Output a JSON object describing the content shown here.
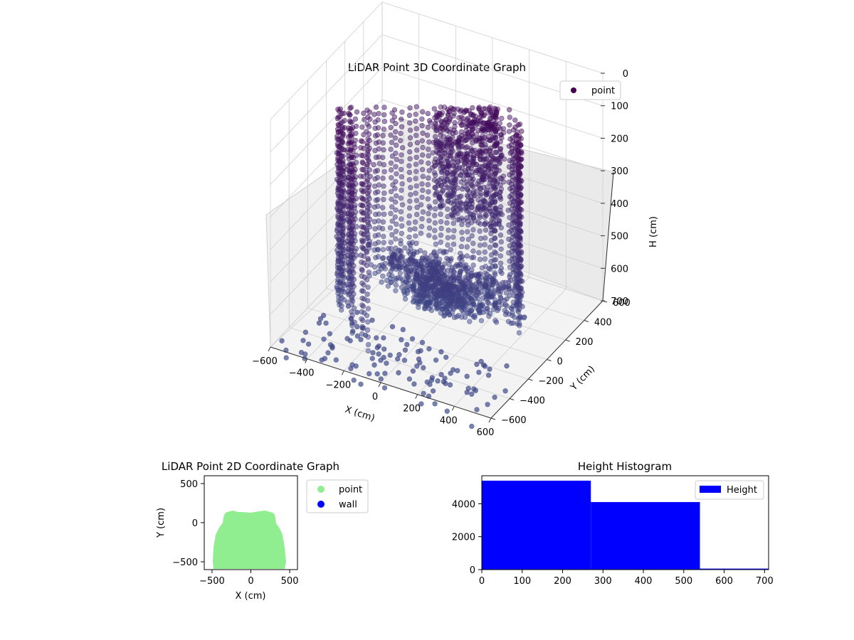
{
  "chart_data": [
    {
      "type": "scatter3d",
      "title": "LiDAR Point 3D Coordinate Graph",
      "xlabel": "X (cm)",
      "ylabel": "Y (cm)",
      "zlabel": "H (cm)",
      "xticks": [
        "−600",
        "−400",
        "−200",
        "0",
        "200",
        "400",
        "600"
      ],
      "yticks": [
        "−600",
        "−400",
        "−200",
        "0",
        "200",
        "400",
        "600"
      ],
      "zticks": [
        "0",
        "100",
        "200",
        "300",
        "400",
        "500",
        "600",
        "700"
      ],
      "xlim": [
        -600,
        600
      ],
      "ylim": [
        -600,
        600
      ],
      "zlim": [
        700,
        0
      ],
      "legend": {
        "position": "top-right",
        "entries": [
          {
            "label": "point",
            "color": "#440154"
          }
        ]
      },
      "point_color_near": "#3e4a89",
      "point_color_far": "#440154",
      "grid": true
    },
    {
      "type": "scatter",
      "title": "LiDAR Point 2D Coordinate Graph",
      "xlabel": "X (cm)",
      "ylabel": "Y (cm)",
      "xticks": [
        "−500",
        "0",
        "500"
      ],
      "yticks": [
        "500",
        "0",
        "−500"
      ],
      "xlim": [
        -600,
        600
      ],
      "ylim": [
        -600,
        600
      ],
      "series": [
        {
          "name": "point",
          "color": "#90ee90",
          "region": {
            "x_range": [
              -460,
              460
            ],
            "y_top": 140,
            "y_bottom": -590
          }
        },
        {
          "name": "wall",
          "color": "#0000ff",
          "region": null
        }
      ],
      "legend": {
        "position": "outside-right",
        "entries": [
          {
            "label": "point",
            "color": "#90ee90"
          },
          {
            "label": "wall",
            "color": "#0000ff"
          }
        ]
      }
    },
    {
      "type": "bar",
      "title": "Height Histogram",
      "xticks": [
        "0",
        "100",
        "200",
        "300",
        "400",
        "500",
        "600",
        "700"
      ],
      "yticks": [
        "0",
        "2000",
        "4000"
      ],
      "xlim": [
        0,
        710
      ],
      "ylim": [
        0,
        5700
      ],
      "bins": [
        {
          "x0": 0,
          "x1": 270,
          "value": 5400
        },
        {
          "x0": 270,
          "x1": 540,
          "value": 4100
        },
        {
          "x0": 540,
          "x1": 710,
          "value": 60
        }
      ],
      "color": "#0000ff",
      "legend": {
        "position": "top-right",
        "entries": [
          {
            "label": "Height",
            "color": "#0000ff"
          }
        ]
      }
    }
  ]
}
